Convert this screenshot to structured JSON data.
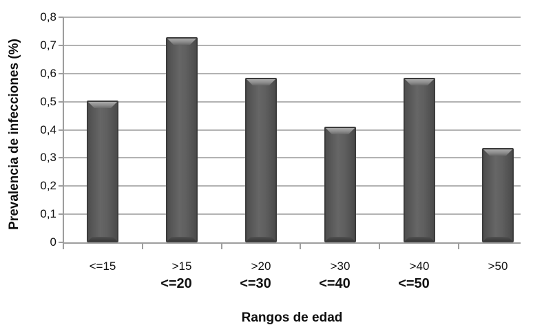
{
  "chart_data": {
    "type": "bar",
    "title": "",
    "xlabel": "Rangos de edad",
    "ylabel": "Prevalencia de infecciones (%)",
    "categories": [
      "<=15",
      ">15 <=20",
      ">20 <=30",
      ">30 <=40",
      ">40 <=50",
      ">50"
    ],
    "category_label_lines": [
      [
        "<=15"
      ],
      [
        ">15",
        "<=20"
      ],
      [
        ">20",
        "<=30"
      ],
      [
        ">30",
        "<=40"
      ],
      [
        ">40",
        "<=50"
      ],
      [
        ">50"
      ]
    ],
    "values": [
      0.505,
      0.73,
      0.585,
      0.41,
      0.585,
      0.335
    ],
    "ylim": [
      0,
      0.8
    ],
    "ytick_values": [
      0,
      0.1,
      0.2,
      0.3,
      0.4,
      0.5,
      0.6,
      0.7,
      0.8
    ],
    "ytick_labels": [
      "0",
      "0,1",
      "0,2",
      "0,3",
      "0,4",
      "0,5",
      "0,6",
      "0,7",
      "0,8"
    ],
    "grid": true,
    "legend": "none",
    "colors": {
      "bar_fill": "#595959",
      "bar_border": "#3c3c3c",
      "bar_bevel_highlight": "#aaaaaa",
      "gridline": "#b2b2b2",
      "axis": "#9d9d9d",
      "text": "#111111",
      "background": "#ffffff"
    }
  }
}
